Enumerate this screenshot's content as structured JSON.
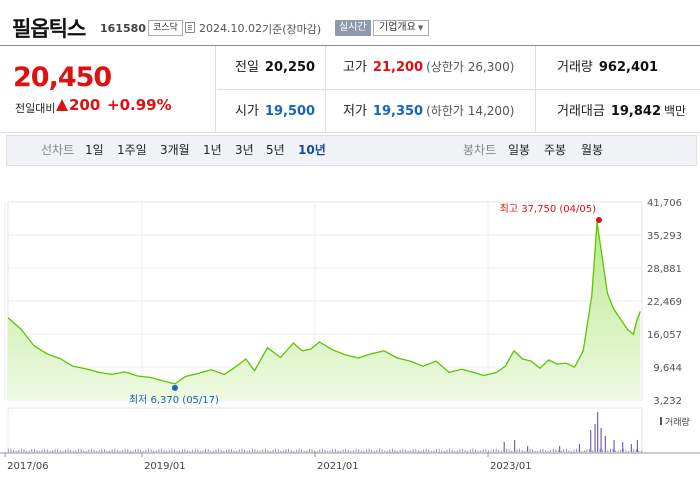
{
  "header": {
    "stock_name": "필옵틱스",
    "stock_code": "161580",
    "market_badge": "코스닥",
    "date": "2024.10.02",
    "basis": "기준(장마감)",
    "realtime_label": "실시간",
    "company_info_label": "기업개요"
  },
  "quote": {
    "price": "20,450",
    "change_label": "전일대비",
    "change": "200",
    "change_pct": "+0.99%",
    "prev_close_label": "전일",
    "prev_close": "20,250",
    "high_label": "고가",
    "high": "21,200",
    "upper_limit": "(상한가 26,300)",
    "volume_label": "거래량",
    "volume": "962,401",
    "open_label": "시가",
    "open": "19,500",
    "low_label": "저가",
    "low": "19,350",
    "lower_limit": "(하한가 14,200)",
    "amount_label": "거래대금",
    "amount": "19,842",
    "amount_unit": "백만"
  },
  "tabs": {
    "line_chart_label": "선차트",
    "line_periods": [
      "1일",
      "1주일",
      "3개월",
      "1년",
      "3년",
      "5년",
      "10년"
    ],
    "active_period": "10년",
    "candle_chart_label": "봉차트",
    "candle_periods": [
      "일봉",
      "주봉",
      "월봉"
    ]
  },
  "chart_data": {
    "type": "area",
    "y_ticks": [
      "41,706",
      "35,293",
      "28,881",
      "22,469",
      "16,057",
      "9,644",
      "3,232"
    ],
    "ylim": [
      3232,
      41706
    ],
    "x_ticks": [
      "2017/06",
      "2019/01",
      "2021/01",
      "2023/01"
    ],
    "x_range": [
      "2017/06",
      "2024/10"
    ],
    "max_annotation": "최고 37,750 (04/05)",
    "min_annotation": "최저 6,370 (05/17)",
    "max_point": {
      "x": "2024/04",
      "y": 37750
    },
    "min_point": {
      "x": "2019/05",
      "y": 6370
    },
    "volume_label": "거래량",
    "series": [
      {
        "values": [
          [
            2017.45,
            19200
          ],
          [
            2017.6,
            17000
          ],
          [
            2017.75,
            13800
          ],
          [
            2017.9,
            12200
          ],
          [
            2018.05,
            11300
          ],
          [
            2018.2,
            9800
          ],
          [
            2018.35,
            9300
          ],
          [
            2018.5,
            8600
          ],
          [
            2018.65,
            8200
          ],
          [
            2018.8,
            8700
          ],
          [
            2018.95,
            7900
          ],
          [
            2019.1,
            7600
          ],
          [
            2019.25,
            6900
          ],
          [
            2019.38,
            6370
          ],
          [
            2019.5,
            7800
          ],
          [
            2019.65,
            8400
          ],
          [
            2019.8,
            9100
          ],
          [
            2019.95,
            8200
          ],
          [
            2020.05,
            9300
          ],
          [
            2020.2,
            11200
          ],
          [
            2020.3,
            8900
          ],
          [
            2020.45,
            13400
          ],
          [
            2020.6,
            11500
          ],
          [
            2020.75,
            14300
          ],
          [
            2020.85,
            12800
          ],
          [
            2020.95,
            13100
          ],
          [
            2021.05,
            14500
          ],
          [
            2021.2,
            13000
          ],
          [
            2021.35,
            12000
          ],
          [
            2021.5,
            11400
          ],
          [
            2021.65,
            12200
          ],
          [
            2021.8,
            12800
          ],
          [
            2021.95,
            11400
          ],
          [
            2022.1,
            10800
          ],
          [
            2022.25,
            9800
          ],
          [
            2022.4,
            10800
          ],
          [
            2022.55,
            8600
          ],
          [
            2022.7,
            9200
          ],
          [
            2022.85,
            8500
          ],
          [
            2022.95,
            8000
          ],
          [
            2023.1,
            8600
          ],
          [
            2023.2,
            9800
          ],
          [
            2023.3,
            12800
          ],
          [
            2023.4,
            11200
          ],
          [
            2023.5,
            10800
          ],
          [
            2023.6,
            9400
          ],
          [
            2023.7,
            11000
          ],
          [
            2023.8,
            10200
          ],
          [
            2023.9,
            10400
          ],
          [
            2024.0,
            9600
          ],
          [
            2024.1,
            12800
          ],
          [
            2024.2,
            23500
          ],
          [
            2024.26,
            37750
          ],
          [
            2024.32,
            31000
          ],
          [
            2024.38,
            24000
          ],
          [
            2024.45,
            21000
          ],
          [
            2024.55,
            18500
          ],
          [
            2024.62,
            16800
          ],
          [
            2024.68,
            16000
          ],
          [
            2024.72,
            18700
          ],
          [
            2024.76,
            20450
          ]
        ]
      }
    ],
    "volume_spikes": [
      [
        2023.18,
        0.25
      ],
      [
        2023.3,
        0.3
      ],
      [
        2023.45,
        0.15
      ],
      [
        2023.82,
        0.15
      ],
      [
        2024.05,
        0.2
      ],
      [
        2024.18,
        0.55
      ],
      [
        2024.23,
        0.7
      ],
      [
        2024.26,
        1.0
      ],
      [
        2024.3,
        0.6
      ],
      [
        2024.35,
        0.4
      ],
      [
        2024.45,
        0.3
      ],
      [
        2024.55,
        0.25
      ],
      [
        2024.65,
        0.2
      ],
      [
        2024.72,
        0.3
      ]
    ]
  }
}
